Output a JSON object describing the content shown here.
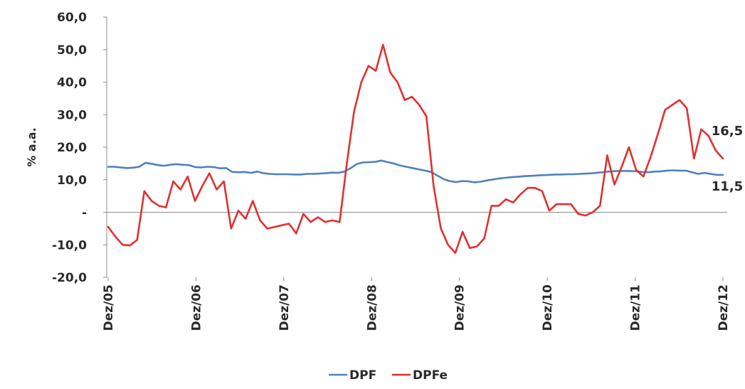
{
  "chart_data": {
    "type": "line",
    "ylabel": "% a.a.",
    "ylim": [
      -20,
      60
    ],
    "yticks": [
      {
        "value": 60,
        "label": "60,0"
      },
      {
        "value": 50,
        "label": "50,0"
      },
      {
        "value": 40,
        "label": "40,0"
      },
      {
        "value": 30,
        "label": "30,0"
      },
      {
        "value": 20,
        "label": "20,0"
      },
      {
        "value": 10,
        "label": "10,0"
      },
      {
        "value": 0,
        "label": "-"
      },
      {
        "value": -10,
        "label": "-10,0"
      },
      {
        "value": -20,
        "label": "-20,0"
      }
    ],
    "xticks": [
      "Dez/05",
      "Dez/06",
      "Dez/07",
      "Dez/08",
      "Dez/09",
      "Dez/10",
      "Dez/11",
      "Dez/12"
    ],
    "grid": false,
    "legend": "bottom",
    "annotations": [
      {
        "series": "DPFe",
        "text": "16,5"
      },
      {
        "series": "DPF",
        "text": "11,5"
      }
    ],
    "series": [
      {
        "name": "DPF",
        "color": "#4f81bd",
        "values": [
          14.0,
          14.0,
          13.8,
          13.6,
          13.7,
          14.0,
          15.2,
          14.9,
          14.5,
          14.3,
          14.6,
          14.8,
          14.6,
          14.5,
          13.9,
          13.8,
          14.0,
          13.9,
          13.5,
          13.6,
          12.4,
          12.3,
          12.4,
          12.1,
          12.5,
          12.0,
          11.8,
          11.7,
          11.7,
          11.7,
          11.6,
          11.6,
          11.8,
          11.8,
          11.9,
          12.0,
          12.2,
          12.1,
          12.5,
          13.5,
          14.8,
          15.3,
          15.4,
          15.5,
          15.9,
          15.4,
          15.0,
          14.4,
          14.0,
          13.6,
          13.2,
          12.8,
          12.4,
          11.3,
          10.2,
          9.6,
          9.3,
          9.6,
          9.5,
          9.2,
          9.4,
          9.8,
          10.1,
          10.4,
          10.6,
          10.8,
          10.9,
          11.1,
          11.2,
          11.3,
          11.4,
          11.5,
          11.6,
          11.6,
          11.7,
          11.7,
          11.8,
          11.9,
          12.0,
          12.2,
          12.4,
          12.6,
          12.7,
          12.7,
          12.7,
          12.6,
          12.4,
          12.3,
          12.5,
          12.6,
          12.8,
          12.9,
          12.8,
          12.8,
          12.3,
          11.8,
          12.1,
          11.8,
          11.5,
          11.5
        ]
      },
      {
        "name": "DPFe",
        "color": "#e0312f",
        "values": [
          -4.5,
          -7.5,
          -10.0,
          -10.2,
          -8.5,
          6.5,
          3.5,
          2.0,
          1.5,
          9.5,
          7.0,
          11.0,
          3.5,
          8.0,
          12.0,
          7.0,
          9.5,
          -5.0,
          0.5,
          -2.0,
          3.5,
          -2.5,
          -5.0,
          -4.5,
          -4.0,
          -3.5,
          -6.5,
          -0.5,
          -3.0,
          -1.5,
          -3.0,
          -2.5,
          -3.0,
          15.0,
          31.0,
          40.0,
          45.0,
          43.5,
          51.5,
          43.0,
          40.0,
          34.5,
          35.5,
          33.0,
          29.5,
          8.0,
          -5.0,
          -10.0,
          -12.5,
          -6.0,
          -11.0,
          -10.5,
          -8.0,
          2.0,
          2.0,
          4.0,
          3.0,
          5.5,
          7.5,
          7.5,
          6.5,
          0.5,
          2.5,
          2.5,
          2.5,
          -0.5,
          -1.0,
          0.0,
          2.0,
          17.5,
          8.5,
          14.0,
          20.0,
          13.0,
          11.0,
          17.0,
          24.0,
          31.5,
          33.0,
          34.5,
          32.0,
          16.5,
          25.5,
          23.5,
          19.0,
          16.5
        ]
      }
    ]
  }
}
